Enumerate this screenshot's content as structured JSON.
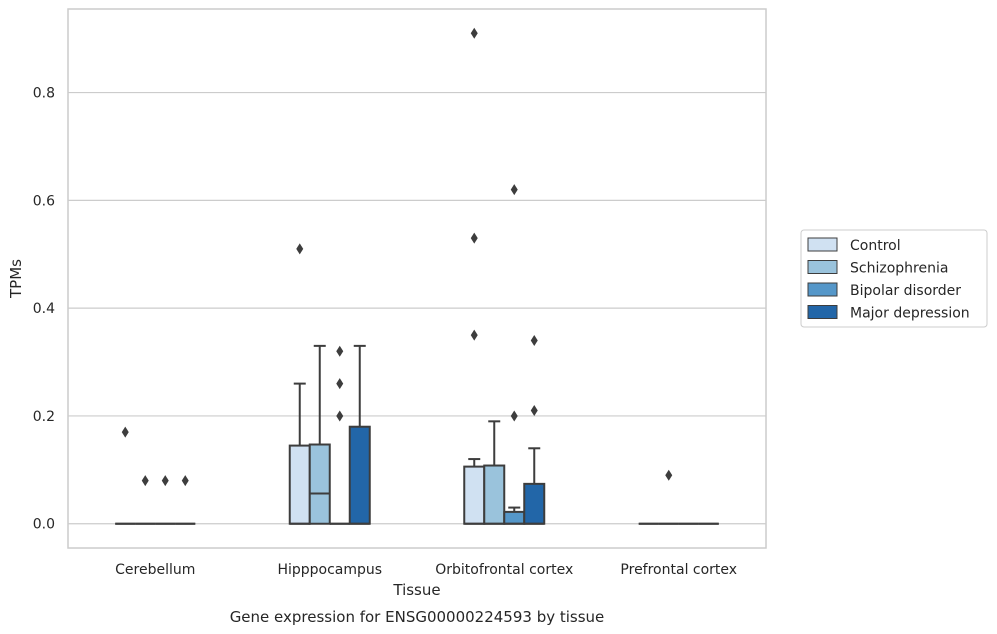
{
  "caption": "Gene expression for ENSG00000224593 by tissue",
  "chart_data": {
    "type": "box",
    "xlabel": "Tissue",
    "ylabel": "TPMs",
    "ylim": [
      -0.045,
      0.955
    ],
    "yticks": [
      0.0,
      0.2,
      0.4,
      0.6,
      0.8
    ],
    "ytick_labels": [
      "0.0",
      "0.2",
      "0.4",
      "0.6",
      "0.8"
    ],
    "grid": "horizontal",
    "legend_position": "right",
    "categories": [
      "Cerebellum",
      "Hipppocampus",
      "Orbitofrontal cortex",
      "Prefrontal cortex"
    ],
    "series": [
      {
        "name": "Control",
        "color": "#d0e1f2",
        "boxes": [
          {
            "q1": 0,
            "median": 0,
            "q3": 0,
            "whisker_low": 0,
            "whisker_high": 0,
            "outliers": [
              0.17
            ]
          },
          {
            "q1": 0,
            "median": 0,
            "q3": 0.145,
            "whisker_low": 0,
            "whisker_high": 0.26,
            "outliers": [
              0.51
            ]
          },
          {
            "q1": 0,
            "median": 0,
            "q3": 0.106,
            "whisker_low": 0,
            "whisker_high": 0.12,
            "outliers": [
              0.35,
              0.53,
              0.91
            ]
          },
          {
            "q1": 0,
            "median": 0,
            "q3": 0,
            "whisker_low": 0,
            "whisker_high": 0,
            "outliers": []
          }
        ]
      },
      {
        "name": "Schizophrenia",
        "color": "#9ac3dc",
        "boxes": [
          {
            "q1": 0,
            "median": 0,
            "q3": 0,
            "whisker_low": 0,
            "whisker_high": 0,
            "outliers": [
              0.08
            ]
          },
          {
            "q1": 0,
            "median": 0.056,
            "q3": 0.147,
            "whisker_low": 0,
            "whisker_high": 0.33,
            "outliers": []
          },
          {
            "q1": 0,
            "median": 0,
            "q3": 0.108,
            "whisker_low": 0,
            "whisker_high": 0.19,
            "outliers": []
          },
          {
            "q1": 0,
            "median": 0,
            "q3": 0,
            "whisker_low": 0,
            "whisker_high": 0,
            "outliers": [
              0.09
            ]
          }
        ]
      },
      {
        "name": "Bipolar disorder",
        "color": "#5597c9",
        "boxes": [
          {
            "q1": 0,
            "median": 0,
            "q3": 0,
            "whisker_low": 0,
            "whisker_high": 0,
            "outliers": [
              0.08
            ]
          },
          {
            "q1": 0,
            "median": 0,
            "q3": 0,
            "whisker_low": 0,
            "whisker_high": 0,
            "outliers": [
              0.2,
              0.26,
              0.32
            ]
          },
          {
            "q1": 0,
            "median": 0,
            "q3": 0.022,
            "whisker_low": 0,
            "whisker_high": 0.03,
            "outliers": [
              0.2,
              0.62
            ]
          },
          {
            "q1": 0,
            "median": 0,
            "q3": 0,
            "whisker_low": 0,
            "whisker_high": 0,
            "outliers": []
          }
        ]
      },
      {
        "name": "Major depression",
        "color": "#2266a8",
        "boxes": [
          {
            "q1": 0,
            "median": 0,
            "q3": 0,
            "whisker_low": 0,
            "whisker_high": 0,
            "outliers": [
              0.08
            ]
          },
          {
            "q1": 0,
            "median": 0,
            "q3": 0.18,
            "whisker_low": 0,
            "whisker_high": 0.33,
            "outliers": []
          },
          {
            "q1": 0,
            "median": 0,
            "q3": 0.074,
            "whisker_low": 0,
            "whisker_high": 0.14,
            "outliers": [
              0.21,
              0.34
            ]
          },
          {
            "q1": 0,
            "median": 0,
            "q3": 0,
            "whisker_low": 0,
            "whisker_high": 0,
            "outliers": []
          }
        ]
      }
    ]
  }
}
